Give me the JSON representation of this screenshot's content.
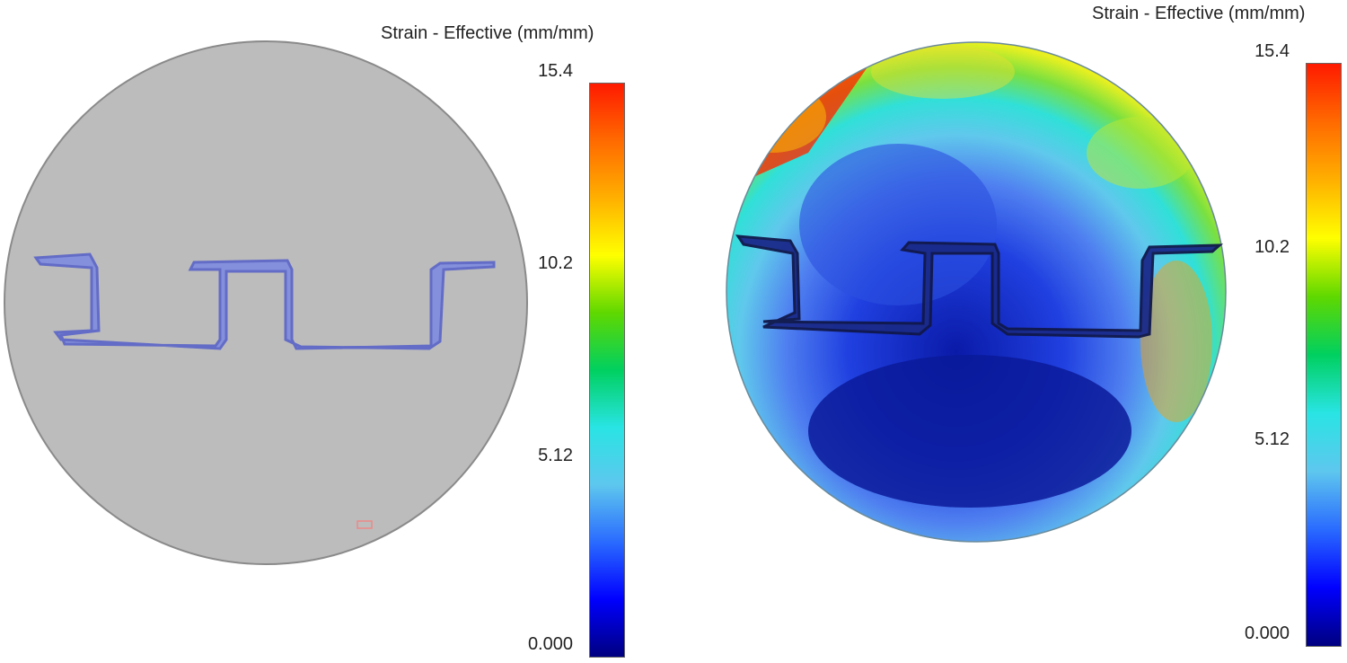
{
  "colorbar_gradient": [
    "#000080",
    "#0000ff",
    "#2a6bff",
    "#5ec7ee",
    "#29e4e4",
    "#00d060",
    "#5fd800",
    "#ffff00",
    "#ffb000",
    "#ff6a00",
    "#ff1a00"
  ],
  "panels": [
    {
      "name": "left",
      "legend_title": "Strain - Effective (mm/mm)",
      "ticks": [
        "15.4",
        "10.2",
        "5.12",
        "0.000"
      ]
    },
    {
      "name": "right",
      "legend_title": "Strain - Effective (mm/mm)",
      "ticks": [
        "15.4",
        "10.2",
        "5.12",
        "0.000"
      ]
    }
  ]
}
